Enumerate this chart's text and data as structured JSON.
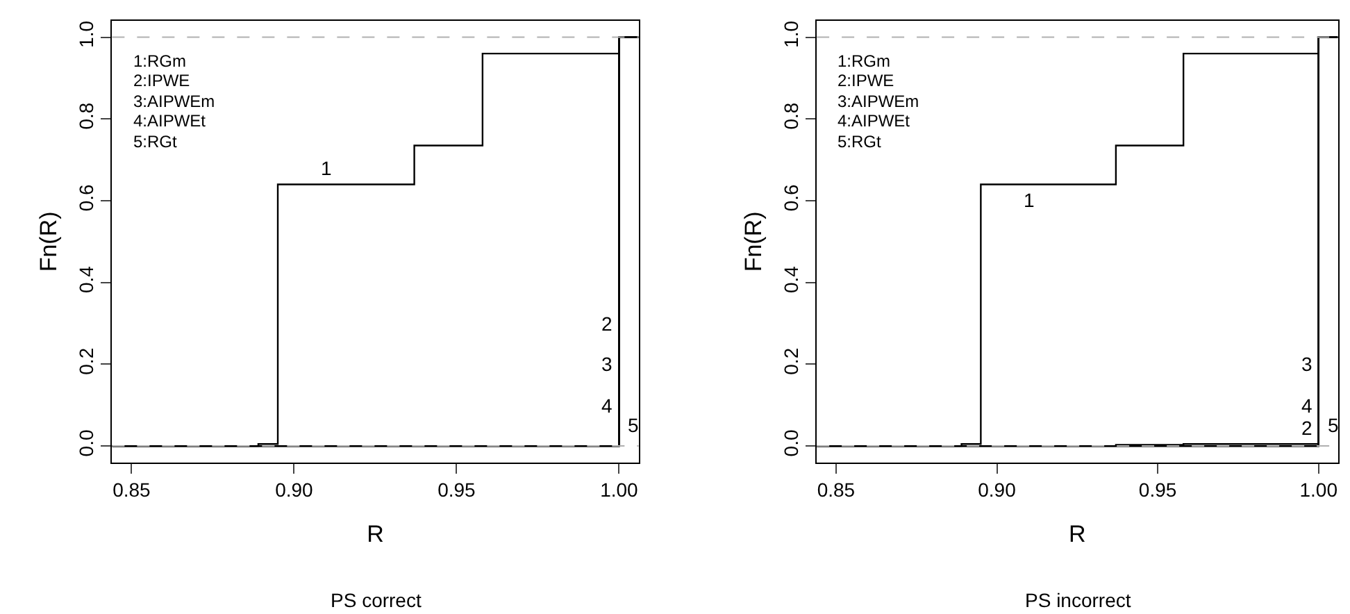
{
  "chart_data": [
    {
      "type": "step",
      "xlabel": "R",
      "subtitle": "PS correct",
      "ylabel": "Fn(R)",
      "xlim": [
        0.844,
        1.006
      ],
      "ylim": [
        -0.04,
        1.04
      ],
      "xticks": [
        {
          "value": 0.85,
          "label": "0.85"
        },
        {
          "value": 0.9,
          "label": "0.90"
        },
        {
          "value": 0.95,
          "label": "0.95"
        },
        {
          "value": 1.0,
          "label": "1.00"
        }
      ],
      "yticks": [
        {
          "value": 0,
          "label": "0.0"
        },
        {
          "value": 0.2,
          "label": "0.2"
        },
        {
          "value": 0.4,
          "label": "0.4"
        },
        {
          "value": 0.6,
          "label": "0.6"
        },
        {
          "value": 0.8,
          "label": "0.8"
        },
        {
          "value": 1,
          "label": "1.0"
        }
      ],
      "series": [
        {
          "color": "#000000",
          "x": [
            0.844,
            0.889,
            0.895,
            0.937,
            0.958,
            1.0,
            1.006
          ],
          "values": [
            0,
            0.005,
            0.64,
            0.735,
            0.96,
            1,
            1
          ]
        },
        {
          "color": "#000000",
          "x": [
            0.844,
            1.0,
            1.006
          ],
          "values": [
            0,
            1,
            1
          ]
        },
        {
          "color": "#000000",
          "x": [
            0.844,
            1.0,
            1.006
          ],
          "values": [
            0,
            1,
            1
          ]
        },
        {
          "color": "#000000",
          "x": [
            0.844,
            1.0,
            1.006
          ],
          "values": [
            0,
            1,
            1
          ]
        },
        {
          "color": "#000000",
          "x": [
            0.844,
            1.0,
            1.006
          ],
          "values": [
            0,
            1,
            1
          ]
        }
      ],
      "ref_lines": [
        {
          "axis": "y",
          "value": 0,
          "color": "#b0b0b0",
          "line_style": "dashed"
        },
        {
          "axis": "y",
          "value": 1,
          "color": "#b0b0b0",
          "line_style": "dashed"
        }
      ],
      "annotations": [
        "1:RGm",
        "2:IPWE",
        "3:AIPWEm",
        "4:AIPWEt",
        "5:RGt",
        {
          "text": "1",
          "x": 0.91,
          "y": 0.645
        },
        {
          "text": "2",
          "x": 0.999,
          "y": 0.3
        },
        {
          "text": "3",
          "x": 0.999,
          "y": 0.2
        },
        {
          "text": "4",
          "x": 0.999,
          "y": 0.1
        },
        {
          "text": "5",
          "x": 1.002,
          "y": 0.05
        }
      ],
      "marker": "none",
      "line_style": "solid"
    },
    {
      "type": "step",
      "xlabel": "R",
      "subtitle": "PS incorrect",
      "ylabel": "Fn(R)",
      "xlim": [
        0.844,
        1.006
      ],
      "ylim": [
        -0.04,
        1.04
      ],
      "xticks": [
        {
          "value": 0.85,
          "label": "0.85"
        },
        {
          "value": 0.9,
          "label": "0.90"
        },
        {
          "value": 0.95,
          "label": "0.95"
        },
        {
          "value": 1.0,
          "label": "1.00"
        }
      ],
      "yticks": [
        {
          "value": 0,
          "label": "0.0"
        },
        {
          "value": 0.2,
          "label": "0.2"
        },
        {
          "value": 0.4,
          "label": "0.4"
        },
        {
          "value": 0.6,
          "label": "0.6"
        },
        {
          "value": 0.8,
          "label": "0.8"
        },
        {
          "value": 1,
          "label": "1.0"
        }
      ],
      "series": [
        {
          "color": "#000000",
          "x": [
            0.844,
            0.889,
            0.895,
            0.937,
            0.958,
            1.0,
            1.006
          ],
          "values": [
            0,
            0.005,
            0.64,
            0.735,
            0.96,
            1,
            1
          ]
        },
        {
          "color": "#000000",
          "x": [
            0.844,
            0.937,
            0.958,
            1.0,
            1.006
          ],
          "values": [
            0,
            0.003,
            0.005,
            1,
            1
          ]
        },
        {
          "color": "#000000",
          "x": [
            0.844,
            1.0,
            1.006
          ],
          "values": [
            0,
            1,
            1
          ]
        },
        {
          "color": "#000000",
          "x": [
            0.844,
            1.0,
            1.006
          ],
          "values": [
            0,
            1,
            1
          ]
        },
        {
          "color": "#000000",
          "x": [
            0.844,
            1.0,
            1.006
          ],
          "values": [
            0,
            1,
            1
          ]
        }
      ],
      "ref_lines": [
        {
          "axis": "y",
          "value": 0,
          "color": "#b0b0b0",
          "line_style": "dashed"
        },
        {
          "axis": "y",
          "value": 1,
          "color": "#b0b0b0",
          "line_style": "dashed"
        }
      ],
      "annotations": [
        "1:RGm",
        "2:IPWE",
        "3:AIPWEm",
        "4:AIPWEt",
        "5:RGt",
        {
          "text": "1",
          "x": 0.91,
          "y": 0.635
        },
        {
          "text": "3",
          "x": 0.999,
          "y": 0.2
        },
        {
          "text": "4",
          "x": 0.999,
          "y": 0.1
        },
        {
          "text": "2",
          "x": 0.999,
          "y": 0.01
        },
        {
          "text": "5",
          "x": 1.002,
          "y": 0.05
        }
      ],
      "marker": "none",
      "line_style": "solid"
    }
  ]
}
